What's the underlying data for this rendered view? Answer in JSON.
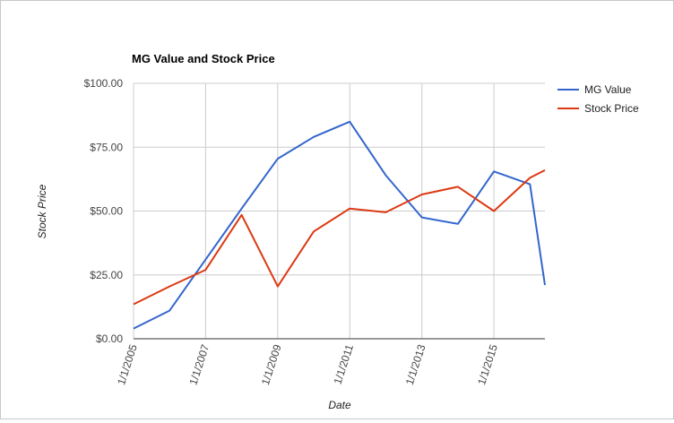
{
  "chart_data": {
    "type": "line",
    "title": "MG Value and Stock Price",
    "xlabel": "Date",
    "ylabel": "Stock Price",
    "x_ticks": [
      "1/1/2005",
      "1/1/2007",
      "1/1/2009",
      "1/1/2011",
      "1/1/2013",
      "1/1/2015"
    ],
    "x_range": [
      "2005-01-01",
      "2016-06-01"
    ],
    "y_ticks": [
      "$0.00",
      "$25.00",
      "$50.00",
      "$75.00",
      "$100.00"
    ],
    "ylim": [
      0,
      100
    ],
    "grid": true,
    "legend_position": "right",
    "series": [
      {
        "name": "MG Value",
        "color": "#3366cc",
        "points": [
          {
            "x": "2005-01-01",
            "y": 4
          },
          {
            "x": "2006-01-01",
            "y": 11
          },
          {
            "x": "2007-01-01",
            "y": 31
          },
          {
            "x": "2008-01-01",
            "y": 51
          },
          {
            "x": "2009-01-01",
            "y": 70.5
          },
          {
            "x": "2010-01-01",
            "y": 79
          },
          {
            "x": "2011-01-01",
            "y": 85
          },
          {
            "x": "2012-01-01",
            "y": 64
          },
          {
            "x": "2013-01-01",
            "y": 47.5
          },
          {
            "x": "2014-01-01",
            "y": 45
          },
          {
            "x": "2015-01-01",
            "y": 65.5
          },
          {
            "x": "2016-01-01",
            "y": 60.5
          },
          {
            "x": "2016-06-01",
            "y": 21
          }
        ]
      },
      {
        "name": "Stock Price",
        "color": "#dc3912",
        "points": [
          {
            "x": "2005-01-01",
            "y": 13.5
          },
          {
            "x": "2006-01-01",
            "y": 20.5
          },
          {
            "x": "2007-01-01",
            "y": 27
          },
          {
            "x": "2008-01-01",
            "y": 48.5
          },
          {
            "x": "2009-01-01",
            "y": 20.5
          },
          {
            "x": "2010-01-01",
            "y": 42
          },
          {
            "x": "2011-01-01",
            "y": 51
          },
          {
            "x": "2012-01-01",
            "y": 49.5
          },
          {
            "x": "2013-01-01",
            "y": 56.5
          },
          {
            "x": "2014-01-01",
            "y": 59.5
          },
          {
            "x": "2015-01-01",
            "y": 50
          },
          {
            "x": "2016-01-01",
            "y": 63
          },
          {
            "x": "2016-06-01",
            "y": 66
          }
        ]
      }
    ]
  }
}
